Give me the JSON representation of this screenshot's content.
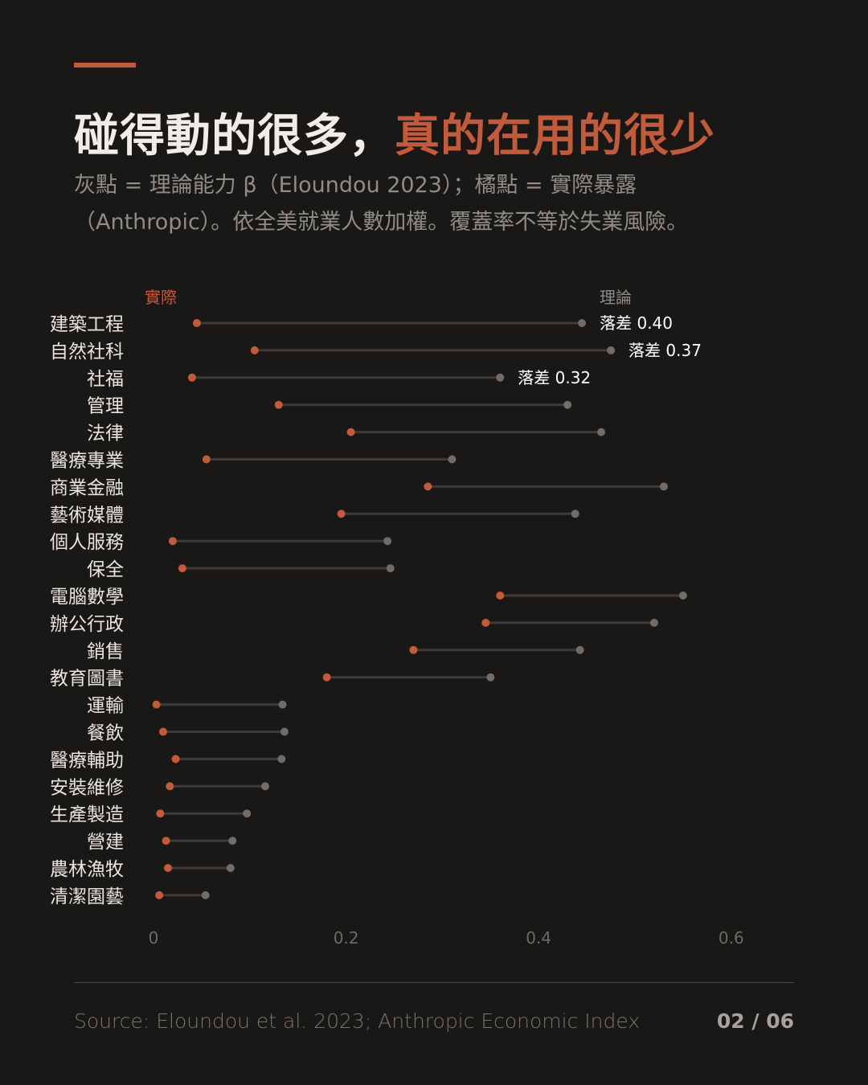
{
  "header": {
    "title_main": "碰得動的很多，",
    "title_highlight": "真的在用的很少",
    "subtitle_line1": "灰點 = 理論能力 β（Eloundou 2023）；橘點 = 實際暴露",
    "subtitle_line2": "（Anthropic）。依全美就業人數加權。覆蓋率不等於失業風險。"
  },
  "colors": {
    "background": "#1a1816",
    "accent": "#c25a3c",
    "theory_dot": "#6f6c69",
    "connector": "#3d3a38",
    "text": "#e8e4de",
    "muted": "#8f8c88"
  },
  "chart_data": {
    "type": "dumbbell",
    "legend": {
      "actual": "實際",
      "theory": "理論"
    },
    "x_ticks": [
      "0",
      "0.2",
      "0.4",
      "0.6"
    ],
    "xlim": [
      0,
      0.6
    ],
    "series": [
      {
        "name": "實際"
      },
      {
        "name": "理論"
      }
    ],
    "categories": [
      "建築工程",
      "自然社科",
      "社福",
      "管理",
      "法律",
      "醫療專業",
      "商業金融",
      "藝術媒體",
      "個人服務",
      "保全",
      "電腦數學",
      "辦公行政",
      "銷售",
      "教育圖書",
      "運輸",
      "餐飲",
      "醫療輔助",
      "安裝維修",
      "生產製造",
      "營建",
      "農林漁牧",
      "清潔園藝"
    ],
    "actual": [
      0.045,
      0.105,
      0.04,
      0.13,
      0.205,
      0.055,
      0.285,
      0.195,
      0.02,
      0.03,
      0.36,
      0.345,
      0.27,
      0.18,
      0.003,
      0.01,
      0.023,
      0.017,
      0.007,
      0.013,
      0.015,
      0.006
    ],
    "theory": [
      0.445,
      0.475,
      0.36,
      0.43,
      0.465,
      0.31,
      0.53,
      0.438,
      0.243,
      0.246,
      0.55,
      0.52,
      0.443,
      0.35,
      0.134,
      0.136,
      0.133,
      0.116,
      0.097,
      0.082,
      0.08,
      0.054
    ],
    "annotations": [
      {
        "row": 0,
        "text": "落差 0.40"
      },
      {
        "row": 1,
        "text": "落差 0.37"
      },
      {
        "row": 2,
        "text": "落差 0.32"
      }
    ]
  },
  "footer": {
    "source": "Source: Eloundou et al. 2023; Anthropic Economic Index",
    "page": "02 / 06"
  }
}
